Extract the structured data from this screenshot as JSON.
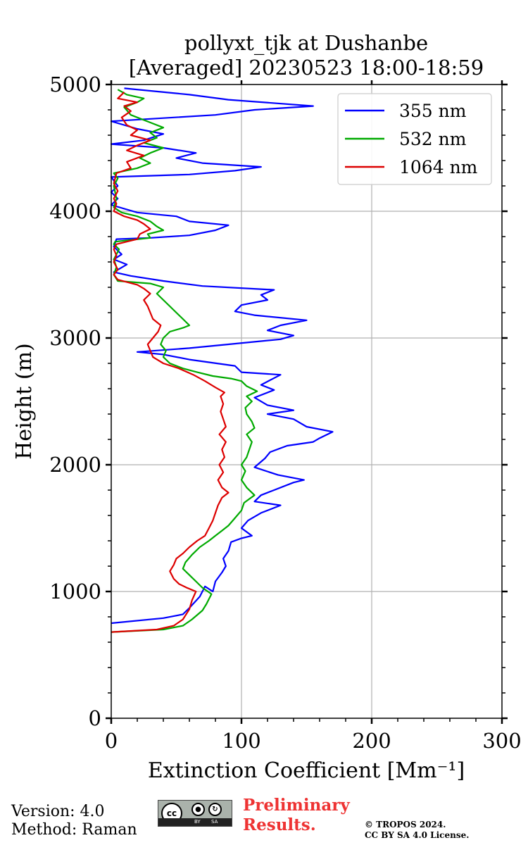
{
  "chart_data": {
    "type": "line",
    "title": [
      "pollyxt_tjk at Dushanbe",
      "[Averaged] 20230523 18:00-18:59"
    ],
    "xlabel": "Extinction Coefficient [Mm⁻¹]",
    "ylabel": "Height (m)",
    "xlim": [
      0,
      300
    ],
    "ylim": [
      0,
      5000
    ],
    "xticks": [
      "0",
      "100",
      "200",
      "300"
    ],
    "yticks": [
      "0",
      "1000",
      "2000",
      "3000",
      "4000",
      "5000"
    ],
    "grid": true,
    "legend_position": "top-right",
    "series": [
      {
        "name": "355 nm",
        "color": "#0000ff",
        "points": [
          [
            0,
            750
          ],
          [
            40,
            790
          ],
          [
            55,
            820
          ],
          [
            60,
            870
          ],
          [
            68,
            960
          ],
          [
            72,
            1040
          ],
          [
            78,
            1000
          ],
          [
            80,
            1080
          ],
          [
            85,
            1150
          ],
          [
            88,
            1200
          ],
          [
            86,
            1260
          ],
          [
            90,
            1320
          ],
          [
            92,
            1390
          ],
          [
            100,
            1420
          ],
          [
            108,
            1440
          ],
          [
            100,
            1500
          ],
          [
            105,
            1560
          ],
          [
            115,
            1620
          ],
          [
            130,
            1680
          ],
          [
            110,
            1710
          ],
          [
            115,
            1760
          ],
          [
            125,
            1800
          ],
          [
            140,
            1860
          ],
          [
            148,
            1880
          ],
          [
            128,
            1920
          ],
          [
            110,
            1980
          ],
          [
            118,
            2050
          ],
          [
            122,
            2100
          ],
          [
            135,
            2150
          ],
          [
            155,
            2180
          ],
          [
            160,
            2210
          ],
          [
            170,
            2260
          ],
          [
            150,
            2300
          ],
          [
            140,
            2360
          ],
          [
            120,
            2400
          ],
          [
            140,
            2430
          ],
          [
            120,
            2470
          ],
          [
            110,
            2530
          ],
          [
            125,
            2590
          ],
          [
            115,
            2630
          ],
          [
            130,
            2710
          ],
          [
            100,
            2730
          ],
          [
            95,
            2780
          ],
          [
            60,
            2830
          ],
          [
            40,
            2870
          ],
          [
            20,
            2890
          ],
          [
            60,
            2920
          ],
          [
            90,
            2950
          ],
          [
            130,
            2990
          ],
          [
            140,
            3020
          ],
          [
            120,
            3060
          ],
          [
            130,
            3100
          ],
          [
            150,
            3140
          ],
          [
            110,
            3180
          ],
          [
            95,
            3210
          ],
          [
            100,
            3260
          ],
          [
            120,
            3300
          ],
          [
            115,
            3340
          ],
          [
            125,
            3380
          ],
          [
            70,
            3410
          ],
          [
            40,
            3450
          ],
          [
            15,
            3490
          ],
          [
            2,
            3520
          ],
          [
            12,
            3580
          ],
          [
            2,
            3620
          ],
          [
            8,
            3660
          ],
          [
            2,
            3720
          ],
          [
            4,
            3780
          ],
          [
            30,
            3790
          ],
          [
            60,
            3810
          ],
          [
            80,
            3850
          ],
          [
            90,
            3890
          ],
          [
            60,
            3920
          ],
          [
            50,
            3960
          ],
          [
            20,
            3990
          ],
          [
            0,
            4050
          ],
          [
            5,
            4100
          ],
          [
            0,
            4150
          ],
          [
            5,
            4200
          ],
          [
            0,
            4270
          ],
          [
            60,
            4290
          ],
          [
            95,
            4320
          ],
          [
            115,
            4350
          ],
          [
            70,
            4380
          ],
          [
            50,
            4420
          ],
          [
            65,
            4460
          ],
          [
            40,
            4500
          ],
          [
            0,
            4530
          ],
          [
            25,
            4560
          ],
          [
            40,
            4610
          ],
          [
            20,
            4650
          ],
          [
            0,
            4710
          ],
          [
            80,
            4760
          ],
          [
            110,
            4800
          ],
          [
            155,
            4830
          ],
          [
            90,
            4880
          ],
          [
            60,
            4920
          ],
          [
            30,
            4950
          ],
          [
            10,
            4970
          ]
        ]
      },
      {
        "name": "532 nm",
        "color": "#00aa00",
        "points": [
          [
            0,
            680
          ],
          [
            40,
            700
          ],
          [
            55,
            730
          ],
          [
            62,
            780
          ],
          [
            70,
            850
          ],
          [
            73,
            900
          ],
          [
            77,
            980
          ],
          [
            70,
            1030
          ],
          [
            65,
            1080
          ],
          [
            60,
            1130
          ],
          [
            55,
            1180
          ],
          [
            57,
            1230
          ],
          [
            62,
            1290
          ],
          [
            68,
            1350
          ],
          [
            75,
            1400
          ],
          [
            80,
            1440
          ],
          [
            85,
            1480
          ],
          [
            90,
            1520
          ],
          [
            95,
            1580
          ],
          [
            100,
            1640
          ],
          [
            102,
            1700
          ],
          [
            110,
            1760
          ],
          [
            104,
            1820
          ],
          [
            100,
            1880
          ],
          [
            103,
            1950
          ],
          [
            100,
            2000
          ],
          [
            104,
            2060
          ],
          [
            106,
            2120
          ],
          [
            108,
            2180
          ],
          [
            104,
            2240
          ],
          [
            110,
            2290
          ],
          [
            108,
            2340
          ],
          [
            104,
            2400
          ],
          [
            103,
            2450
          ],
          [
            108,
            2500
          ],
          [
            104,
            2540
          ],
          [
            112,
            2580
          ],
          [
            104,
            2620
          ],
          [
            100,
            2660
          ],
          [
            92,
            2680
          ],
          [
            78,
            2700
          ],
          [
            66,
            2730
          ],
          [
            55,
            2760
          ],
          [
            45,
            2800
          ],
          [
            40,
            2850
          ],
          [
            42,
            2900
          ],
          [
            38,
            2950
          ],
          [
            40,
            3000
          ],
          [
            45,
            3050
          ],
          [
            55,
            3080
          ],
          [
            60,
            3100
          ],
          [
            55,
            3150
          ],
          [
            50,
            3200
          ],
          [
            45,
            3250
          ],
          [
            40,
            3300
          ],
          [
            35,
            3350
          ],
          [
            40,
            3400
          ],
          [
            30,
            3430
          ],
          [
            5,
            3450
          ],
          [
            2,
            3500
          ],
          [
            4,
            3560
          ],
          [
            2,
            3620
          ],
          [
            6,
            3700
          ],
          [
            2,
            3740
          ],
          [
            3,
            3760
          ],
          [
            30,
            3790
          ],
          [
            28,
            3820
          ],
          [
            40,
            3850
          ],
          [
            35,
            3880
          ],
          [
            30,
            3920
          ],
          [
            20,
            3960
          ],
          [
            8,
            3990
          ],
          [
            2,
            4030
          ],
          [
            4,
            4100
          ],
          [
            2,
            4200
          ],
          [
            5,
            4260
          ],
          [
            2,
            4300
          ],
          [
            20,
            4340
          ],
          [
            30,
            4380
          ],
          [
            22,
            4420
          ],
          [
            30,
            4460
          ],
          [
            40,
            4500
          ],
          [
            25,
            4540
          ],
          [
            35,
            4580
          ],
          [
            30,
            4620
          ],
          [
            40,
            4660
          ],
          [
            30,
            4700
          ],
          [
            15,
            4760
          ],
          [
            10,
            4820
          ],
          [
            20,
            4860
          ],
          [
            25,
            4890
          ],
          [
            12,
            4920
          ],
          [
            5,
            4960
          ]
        ]
      },
      {
        "name": "1064 nm",
        "color": "#dd0000",
        "points": [
          [
            0,
            680
          ],
          [
            35,
            700
          ],
          [
            48,
            730
          ],
          [
            55,
            780
          ],
          [
            60,
            860
          ],
          [
            62,
            930
          ],
          [
            65,
            1000
          ],
          [
            58,
            1030
          ],
          [
            52,
            1060
          ],
          [
            48,
            1100
          ],
          [
            45,
            1160
          ],
          [
            48,
            1210
          ],
          [
            50,
            1260
          ],
          [
            55,
            1300
          ],
          [
            60,
            1350
          ],
          [
            66,
            1400
          ],
          [
            72,
            1440
          ],
          [
            75,
            1500
          ],
          [
            78,
            1560
          ],
          [
            80,
            1620
          ],
          [
            82,
            1680
          ],
          [
            85,
            1740
          ],
          [
            90,
            1780
          ],
          [
            85,
            1820
          ],
          [
            82,
            1880
          ],
          [
            86,
            1940
          ],
          [
            83,
            2000
          ],
          [
            87,
            2060
          ],
          [
            85,
            2120
          ],
          [
            88,
            2180
          ],
          [
            83,
            2240
          ],
          [
            88,
            2300
          ],
          [
            86,
            2360
          ],
          [
            84,
            2420
          ],
          [
            86,
            2480
          ],
          [
            84,
            2540
          ],
          [
            87,
            2570
          ],
          [
            80,
            2610
          ],
          [
            72,
            2660
          ],
          [
            63,
            2710
          ],
          [
            52,
            2760
          ],
          [
            40,
            2800
          ],
          [
            32,
            2850
          ],
          [
            30,
            2900
          ],
          [
            28,
            2950
          ],
          [
            32,
            3000
          ],
          [
            36,
            3050
          ],
          [
            38,
            3100
          ],
          [
            32,
            3150
          ],
          [
            30,
            3200
          ],
          [
            28,
            3250
          ],
          [
            25,
            3300
          ],
          [
            30,
            3350
          ],
          [
            25,
            3390
          ],
          [
            20,
            3420
          ],
          [
            5,
            3460
          ],
          [
            2,
            3500
          ],
          [
            5,
            3540
          ],
          [
            2,
            3600
          ],
          [
            4,
            3650
          ],
          [
            2,
            3700
          ],
          [
            4,
            3740
          ],
          [
            20,
            3780
          ],
          [
            22,
            3820
          ],
          [
            30,
            3860
          ],
          [
            25,
            3900
          ],
          [
            20,
            3930
          ],
          [
            10,
            3960
          ],
          [
            2,
            4000
          ],
          [
            4,
            4060
          ],
          [
            2,
            4100
          ],
          [
            5,
            4160
          ],
          [
            2,
            4220
          ],
          [
            4,
            4300
          ],
          [
            15,
            4340
          ],
          [
            12,
            4390
          ],
          [
            25,
            4440
          ],
          [
            12,
            4480
          ],
          [
            20,
            4520
          ],
          [
            30,
            4560
          ],
          [
            15,
            4600
          ],
          [
            20,
            4640
          ],
          [
            12,
            4680
          ],
          [
            8,
            4740
          ],
          [
            15,
            4790
          ],
          [
            10,
            4830
          ],
          [
            20,
            4860
          ],
          [
            5,
            4890
          ],
          [
            10,
            4940
          ]
        ]
      }
    ]
  },
  "footer": {
    "version": "Version: 4.0",
    "method": "Method: Raman",
    "preliminary_line1": "Preliminary",
    "preliminary_line2": "Results.",
    "copyright_line1": "© TROPOS 2024.",
    "copyright_line2": "CC BY SA 4.0 License.",
    "license_badge": {
      "icon": "cc-by-sa-icon",
      "cc": "cc",
      "by": "BY",
      "sa": "SA"
    }
  }
}
